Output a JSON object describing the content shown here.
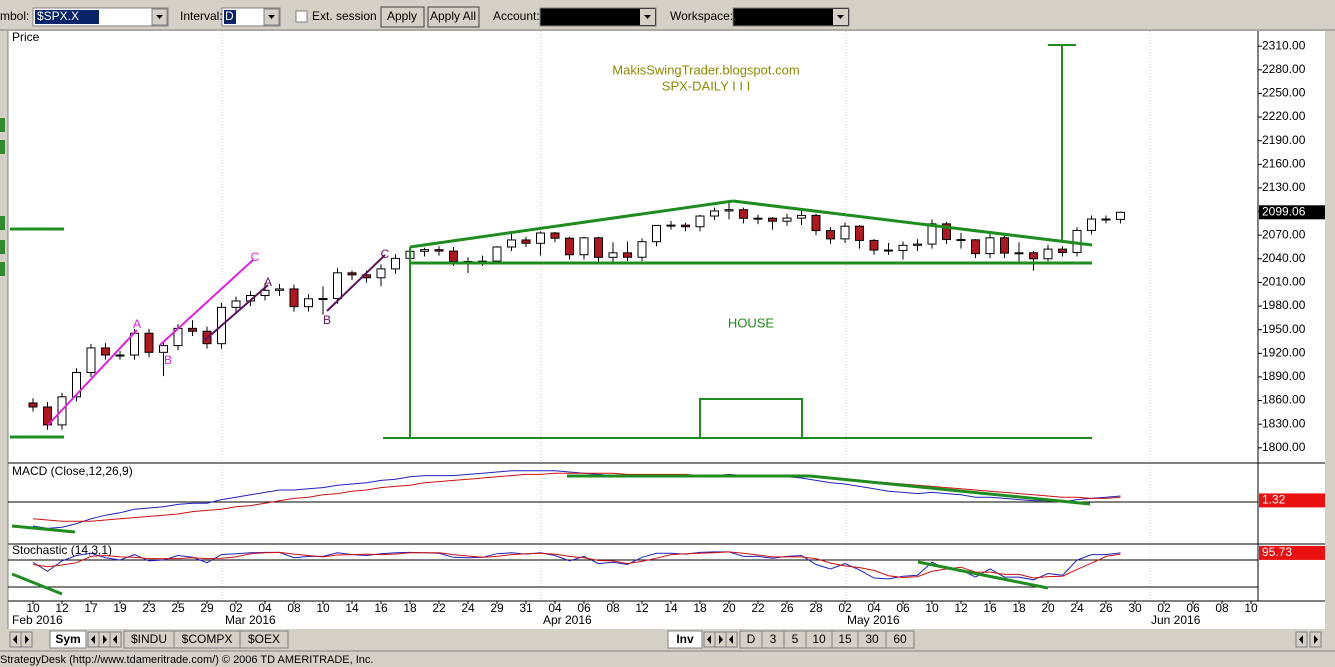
{
  "toolbar": {
    "symbol_label": "mbol:",
    "symbol": "$SPX.X",
    "interval_label": "Interval:",
    "interval": "D",
    "ext_session": "Ext. session",
    "apply": "Apply",
    "apply_all": "Apply All",
    "account_label": "Account:",
    "workspace_label": "Workspace:"
  },
  "chart_data": [
    {
      "type": "candlestick",
      "title": "Price",
      "up_color": "#ffffff",
      "down_color": "#b0171f",
      "ylim": [
        1782,
        2328
      ],
      "yticks": [
        {
          "value": 2310,
          "label": "2310.00"
        },
        {
          "value": 2280,
          "label": "2280.00"
        },
        {
          "value": 2250,
          "label": "2250.00"
        },
        {
          "value": 2220,
          "label": "2220.00"
        },
        {
          "value": 2190,
          "label": "2190.00"
        },
        {
          "value": 2160,
          "label": "2160.00"
        },
        {
          "value": 2130,
          "label": "2130.00"
        },
        {
          "value": 2100,
          "label": "2100.00"
        },
        {
          "value": 2070,
          "label": "2070.00"
        },
        {
          "value": 2040,
          "label": "2040.00"
        },
        {
          "value": 2010,
          "label": "2010.00"
        },
        {
          "value": 1980,
          "label": "1980.00"
        },
        {
          "value": 1950,
          "label": "1950.00"
        },
        {
          "value": 1920,
          "label": "1920.00"
        },
        {
          "value": 1890,
          "label": "1890.00"
        },
        {
          "value": 1860,
          "label": "1860.00"
        },
        {
          "value": 1830,
          "label": "1830.00"
        },
        {
          "value": 1800,
          "label": "1800.00"
        }
      ],
      "last_value": 2099.06,
      "annotations": [
        "MakisSwingTrader.blogspot.com",
        "SPX-DAILY  I I I",
        "HOUSE",
        "A",
        "B",
        "C",
        "A",
        "B",
        "C"
      ],
      "candles": [
        [
          1857.0,
          1863,
          1846,
          1851.86
        ],
        [
          1851.86,
          1858,
          1823,
          1829.08
        ],
        [
          1829.08,
          1870,
          1823,
          1864.78
        ],
        [
          1864.78,
          1901,
          1859,
          1895.58
        ],
        [
          1895.58,
          1932,
          1890,
          1926.82
        ],
        [
          1926.82,
          1933,
          1912,
          1917.83
        ],
        [
          1917.83,
          1923,
          1912,
          1917.78
        ],
        [
          1917.78,
          1951,
          1912,
          1945.5
        ],
        [
          1945.5,
          1951,
          1915,
          1921.27
        ],
        [
          1921.27,
          1935,
          1891,
          1929.8
        ],
        [
          1929.8,
          1957,
          1924,
          1951.7
        ],
        [
          1951.7,
          1962,
          1942,
          1948.05
        ],
        [
          1948.05,
          1954,
          1926,
          1932.23
        ],
        [
          1932.23,
          1984,
          1926,
          1978.35
        ],
        [
          1978.35,
          1992,
          1972,
          1986.45
        ],
        [
          1986.45,
          1999,
          1980,
          1993.4
        ],
        [
          1993.4,
          2009,
          1987,
          1999.99
        ],
        [
          1999.99,
          2008,
          1993,
          2001.76
        ],
        [
          2001.76,
          2007,
          1973,
          1979.26
        ],
        [
          1979.26,
          1995,
          1973,
          1989.26
        ],
        [
          1989.26,
          2005,
          1969,
          1989.57
        ],
        [
          1989.57,
          2028,
          1983,
          2022.19
        ],
        [
          2022.19,
          2025,
          2013,
          2019.64
        ],
        [
          2019.64,
          2025,
          2010,
          2015.93
        ],
        [
          2015.93,
          2033,
          2005,
          2027.22
        ],
        [
          2027.22,
          2046,
          2021,
          2040.59
        ],
        [
          2040.59,
          2053,
          2034,
          2049.58
        ],
        [
          2049.58,
          2054,
          2043,
          2051.6
        ],
        [
          2051.6,
          2056,
          2044,
          2049.8
        ],
        [
          2049.8,
          2055,
          2031,
          2036.71
        ],
        [
          2036.71,
          2042,
          2022,
          2035.94
        ],
        [
          2035.94,
          2044,
          2031,
          2037.05
        ],
        [
          2037.05,
          2056,
          2033,
          2055.01
        ],
        [
          2055.01,
          2072,
          2050,
          2063.95
        ],
        [
          2063.95,
          2068,
          2055,
          2059.74
        ],
        [
          2059.74,
          2075,
          2044,
          2072.78
        ],
        [
          2072.78,
          2074,
          2061,
          2066.13
        ],
        [
          2066.13,
          2068,
          2039,
          2045.17
        ],
        [
          2045.17,
          2068,
          2039,
          2066.66
        ],
        [
          2066.66,
          2068,
          2036,
          2041.91
        ],
        [
          2041.91,
          2061,
          2036,
          2047.6
        ],
        [
          2047.6,
          2062,
          2037,
          2041.99
        ],
        [
          2041.99,
          2066,
          2037,
          2061.72
        ],
        [
          2061.72,
          2083,
          2056,
          2082.42
        ],
        [
          2082.42,
          2088,
          2077,
          2082.78
        ],
        [
          2082.78,
          2086,
          2075,
          2080.73
        ],
        [
          2080.73,
          2096,
          2075,
          2094.34
        ],
        [
          2094.34,
          2105,
          2089,
          2100.8
        ],
        [
          2100.8,
          2111,
          2090,
          2102.4
        ],
        [
          2102.4,
          2105,
          2085,
          2091.48
        ],
        [
          2091.48,
          2096,
          2084,
          2091.58
        ],
        [
          2091.58,
          2093,
          2077,
          2087.79
        ],
        [
          2087.79,
          2097,
          2082,
          2091.7
        ],
        [
          2091.7,
          2101,
          2083,
          2095.15
        ],
        [
          2095.15,
          2097,
          2070,
          2075.81
        ],
        [
          2075.81,
          2080,
          2059,
          2065.3
        ],
        [
          2065.3,
          2086,
          2060,
          2081.43
        ],
        [
          2081.43,
          2083,
          2053,
          2063.37
        ],
        [
          2063.37,
          2065,
          2045,
          2051.12
        ],
        [
          2051.12,
          2060,
          2045,
          2050.63
        ],
        [
          2050.63,
          2062,
          2039,
          2057.14
        ],
        [
          2057.14,
          2065,
          2050,
          2058.69
        ],
        [
          2058.69,
          2090,
          2053,
          2084.39
        ],
        [
          2084.39,
          2087,
          2059,
          2064.46
        ],
        [
          2064.46,
          2073,
          2053,
          2064.11
        ],
        [
          2064.11,
          2065,
          2041,
          2046.61
        ],
        [
          2046.61,
          2072,
          2041,
          2066.66
        ],
        [
          2066.66,
          2071,
          2041,
          2047.21
        ],
        [
          2047.21,
          2061,
          2034,
          2047.63
        ],
        [
          2047.63,
          2050,
          2025,
          2040.04
        ],
        [
          2040.04,
          2058,
          2035,
          2052.32
        ],
        [
          2052.32,
          2056,
          2043,
          2048.04
        ],
        [
          2048.04,
          2080,
          2043,
          2076.06
        ],
        [
          2076.06,
          2095,
          2071,
          2090.54
        ],
        [
          2090.54,
          2095,
          2085,
          2090.1
        ],
        [
          2090.1,
          2100,
          2085,
          2099.06
        ]
      ]
    },
    {
      "type": "line",
      "title": "MACD (Close,12,26,9)",
      "ylim": [
        -30,
        30
      ],
      "ref_lines": [
        0
      ],
      "last_value": 1.32,
      "series": [
        {
          "color": "#2020c0",
          "values": [
            -20,
            -22,
            -21,
            -18,
            -14,
            -11,
            -9,
            -6,
            -5,
            -4,
            -2,
            -1,
            -1,
            2,
            4,
            6,
            8,
            10,
            10,
            11,
            12,
            14,
            15,
            16,
            18,
            19,
            21,
            22,
            22,
            22,
            23,
            24,
            25,
            26,
            26,
            26,
            26,
            25,
            24,
            23,
            22,
            21,
            21,
            21,
            21,
            21,
            22,
            22,
            23,
            22,
            22,
            21,
            21,
            20,
            18,
            16,
            15,
            13,
            11,
            9,
            8,
            7,
            8,
            7,
            6,
            4,
            4,
            3,
            2,
            1,
            1,
            0,
            2,
            3,
            4,
            5
          ]
        },
        {
          "color": "#d01010",
          "values": [
            -14,
            -15,
            -16,
            -16,
            -16,
            -15,
            -14,
            -13,
            -12,
            -11,
            -10,
            -8,
            -7,
            -6,
            -4,
            -3,
            -1,
            1,
            3,
            4,
            6,
            7,
            9,
            10,
            12,
            13,
            14,
            16,
            17,
            18,
            19,
            20,
            21,
            22,
            23,
            23,
            24,
            24,
            24,
            24,
            24,
            23,
            23,
            23,
            23,
            23,
            22,
            22,
            22,
            22,
            22,
            22,
            22,
            21,
            21,
            20,
            19,
            18,
            17,
            16,
            15,
            14,
            13,
            12,
            11,
            10,
            9,
            8,
            7,
            6,
            5,
            4,
            4,
            3,
            3,
            4
          ]
        }
      ]
    },
    {
      "type": "line",
      "title": "Stochastic (14,3,1)",
      "ylim": [
        0,
        100
      ],
      "ref_lines": [
        20,
        80
      ],
      "last_value": 95.73,
      "series": [
        {
          "color": "#2020c0",
          "values": [
            75,
            55,
            78,
            90,
            95,
            85,
            80,
            92,
            78,
            80,
            90,
            86,
            74,
            92,
            94,
            96,
            97,
            97,
            85,
            88,
            88,
            96,
            92,
            90,
            94,
            96,
            97,
            96,
            95,
            86,
            85,
            86,
            94,
            96,
            93,
            96,
            90,
            78,
            88,
            72,
            75,
            70,
            86,
            95,
            95,
            93,
            97,
            98,
            98,
            88,
            88,
            84,
            88,
            90,
            70,
            60,
            72,
            58,
            40,
            38,
            44,
            46,
            75,
            60,
            58,
            42,
            60,
            42,
            42,
            36,
            50,
            46,
            80,
            92,
            92,
            95.73
          ]
        },
        {
          "color": "#d01010",
          "values": [
            70,
            65,
            69,
            74,
            88,
            90,
            87,
            86,
            83,
            83,
            83,
            85,
            83,
            84,
            87,
            94,
            96,
            97,
            93,
            90,
            87,
            91,
            92,
            93,
            92,
            93,
            96,
            96,
            96,
            92,
            89,
            86,
            88,
            92,
            94,
            95,
            93,
            88,
            85,
            79,
            78,
            72,
            77,
            84,
            92,
            94,
            95,
            96,
            98,
            95,
            91,
            87,
            87,
            87,
            83,
            73,
            67,
            63,
            57,
            45,
            41,
            43,
            55,
            60,
            64,
            53,
            53,
            48,
            48,
            40,
            43,
            44,
            59,
            73,
            88,
            93
          ]
        }
      ]
    }
  ],
  "x_axis": {
    "labels": [
      "10",
      "12",
      "17",
      "19",
      "23",
      "25",
      "29",
      "02",
      "04",
      "08",
      "10",
      "14",
      "16",
      "18",
      "22",
      "24",
      "29",
      "31",
      "04",
      "06",
      "08",
      "12",
      "14",
      "18",
      "20",
      "22",
      "26",
      "28",
      "02",
      "04",
      "06",
      "10",
      "12",
      "16",
      "18",
      "20",
      "24",
      "26",
      "30",
      "02",
      "06",
      "08",
      "10"
    ],
    "months": [
      "Feb 2016",
      "Mar 2016",
      "Apr 2016",
      "May 2016",
      "Jun 2016"
    ]
  },
  "tabs": {
    "left": [
      "Sym",
      "$INDU",
      "$COMPX",
      "$OEX"
    ],
    "right": [
      "Inv",
      "D",
      "3",
      "5",
      "10",
      "15",
      "30",
      "60"
    ]
  },
  "status": "StrategyDesk (http://www.tdameritrade.com/) © 2006 TD AMERITRADE, Inc."
}
